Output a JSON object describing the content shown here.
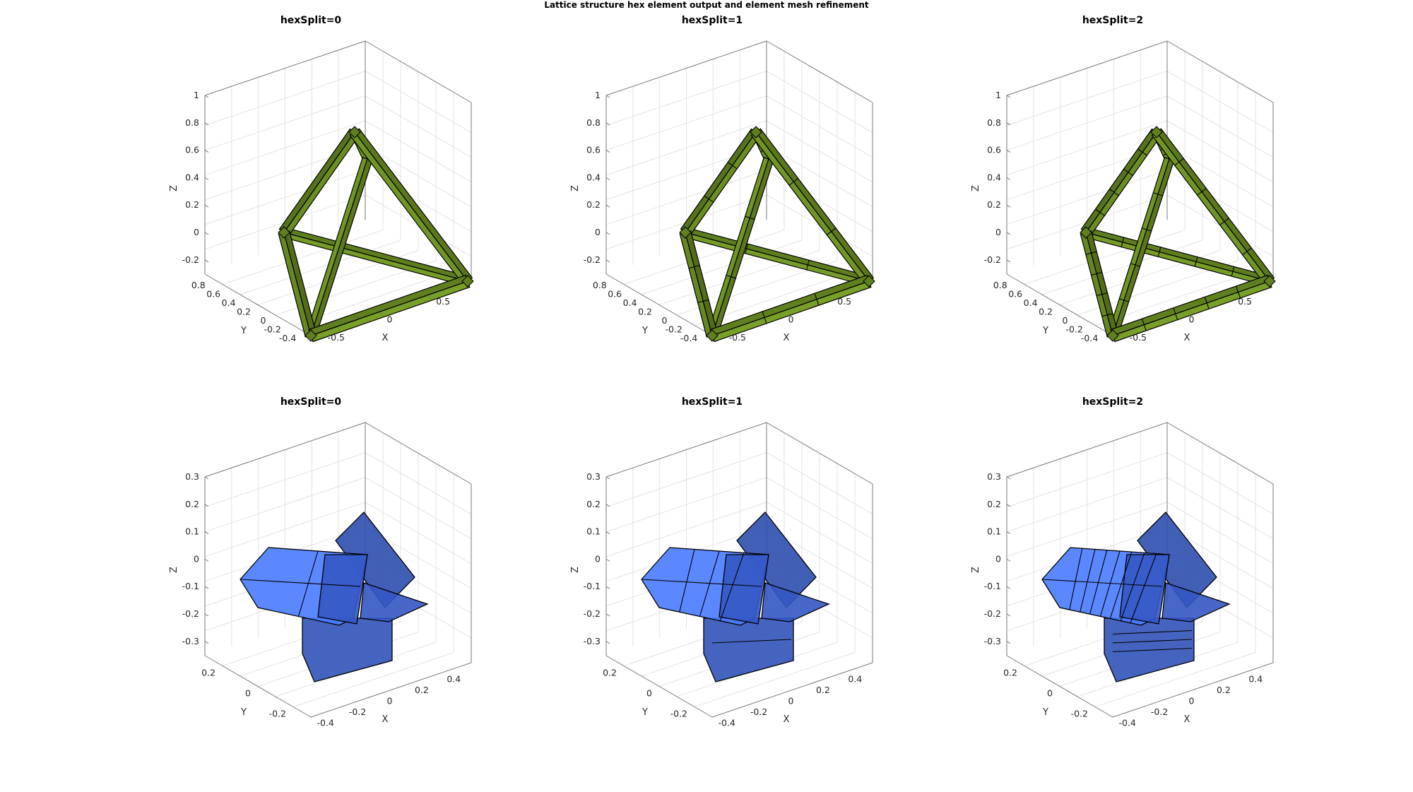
{
  "figure": {
    "title": "Lattice structure hex element output and element mesh refinement"
  },
  "colors": {
    "green_face": "#6b8e23",
    "blue_face": "#3a62d9",
    "box_line": "#7a7a7a",
    "grid_line": "#e3e3e3",
    "edge_line": "#000000"
  },
  "chart_data": [
    {
      "type": "3d-surface",
      "title": "hexSplit=0",
      "xlabel": "X",
      "ylabel": "Y",
      "zlabel": "Z",
      "xticks": [
        "-0.5",
        "0",
        "0.5"
      ],
      "yticks": [
        "-0.4",
        "-0.2",
        "0",
        "0.2",
        "0.4",
        "0.6",
        "0.8"
      ],
      "zticks": [
        "-0.2",
        "0",
        "0.2",
        "0.4",
        "0.6",
        "0.8",
        "1"
      ],
      "grid": true,
      "hexSplit": 0,
      "color": "green",
      "vertices": [
        [
          -0.5,
          -0.29,
          -0.2
        ],
        [
          0.5,
          -0.29,
          -0.2
        ],
        [
          0,
          0.58,
          -0.2
        ],
        [
          0,
          0,
          0.82
        ]
      ]
    },
    {
      "type": "3d-surface",
      "title": "hexSplit=1",
      "xlabel": "X",
      "ylabel": "Y",
      "zlabel": "Z",
      "xticks": [
        "-0.5",
        "0",
        "0.5"
      ],
      "yticks": [
        "-0.4",
        "-0.2",
        "0",
        "0.2",
        "0.4",
        "0.6",
        "0.8"
      ],
      "zticks": [
        "-0.2",
        "0",
        "0.2",
        "0.4",
        "0.6",
        "0.8",
        "1"
      ],
      "grid": true,
      "hexSplit": 1,
      "color": "green",
      "vertices": [
        [
          -0.5,
          -0.29,
          -0.2
        ],
        [
          0.5,
          -0.29,
          -0.2
        ],
        [
          0,
          0.58,
          -0.2
        ],
        [
          0,
          0,
          0.82
        ]
      ]
    },
    {
      "type": "3d-surface",
      "title": "hexSplit=2",
      "xlabel": "X",
      "ylabel": "Y",
      "zlabel": "Z",
      "xticks": [
        "-0.5",
        "0",
        "0.5"
      ],
      "yticks": [
        "-0.4",
        "-0.2",
        "0",
        "0.2",
        "0.4",
        "0.6",
        "0.8"
      ],
      "zticks": [
        "-0.2",
        "0",
        "0.2",
        "0.4",
        "0.6",
        "0.8",
        "1"
      ],
      "grid": true,
      "hexSplit": 2,
      "color": "green",
      "vertices": [
        [
          -0.5,
          -0.29,
          -0.2
        ],
        [
          0.5,
          -0.29,
          -0.2
        ],
        [
          0,
          0.58,
          -0.2
        ],
        [
          0,
          0,
          0.82
        ]
      ]
    },
    {
      "type": "3d-surface",
      "title": "hexSplit=0",
      "xlabel": "X",
      "ylabel": "Y",
      "zlabel": "Z",
      "xticks": [
        "-0.4",
        "-0.2",
        "0",
        "0.2",
        "0.4"
      ],
      "yticks": [
        "-0.2",
        "0",
        "0.2"
      ],
      "zticks": [
        "-0.3",
        "-0.2",
        "-0.1",
        "0",
        "0.1",
        "0.2",
        "0.3"
      ],
      "grid": true,
      "hexSplit": 0,
      "color": "blue"
    },
    {
      "type": "3d-surface",
      "title": "hexSplit=1",
      "xlabel": "X",
      "ylabel": "Y",
      "zlabel": "Z",
      "xticks": [
        "-0.4",
        "-0.2",
        "0",
        "0.2",
        "0.4"
      ],
      "yticks": [
        "-0.2",
        "0",
        "0.2"
      ],
      "zticks": [
        "-0.3",
        "-0.2",
        "-0.1",
        "0",
        "0.1",
        "0.2",
        "0.3"
      ],
      "grid": true,
      "hexSplit": 1,
      "color": "blue"
    },
    {
      "type": "3d-surface",
      "title": "hexSplit=2",
      "xlabel": "X",
      "ylabel": "Y",
      "zlabel": "Z",
      "xticks": [
        "-0.4",
        "-0.2",
        "0",
        "0.2",
        "0.4"
      ],
      "yticks": [
        "-0.2",
        "0",
        "0.2"
      ],
      "zticks": [
        "-0.3",
        "-0.2",
        "-0.1",
        "0",
        "0.1",
        "0.2",
        "0.3"
      ],
      "grid": true,
      "hexSplit": 2,
      "color": "blue"
    }
  ]
}
